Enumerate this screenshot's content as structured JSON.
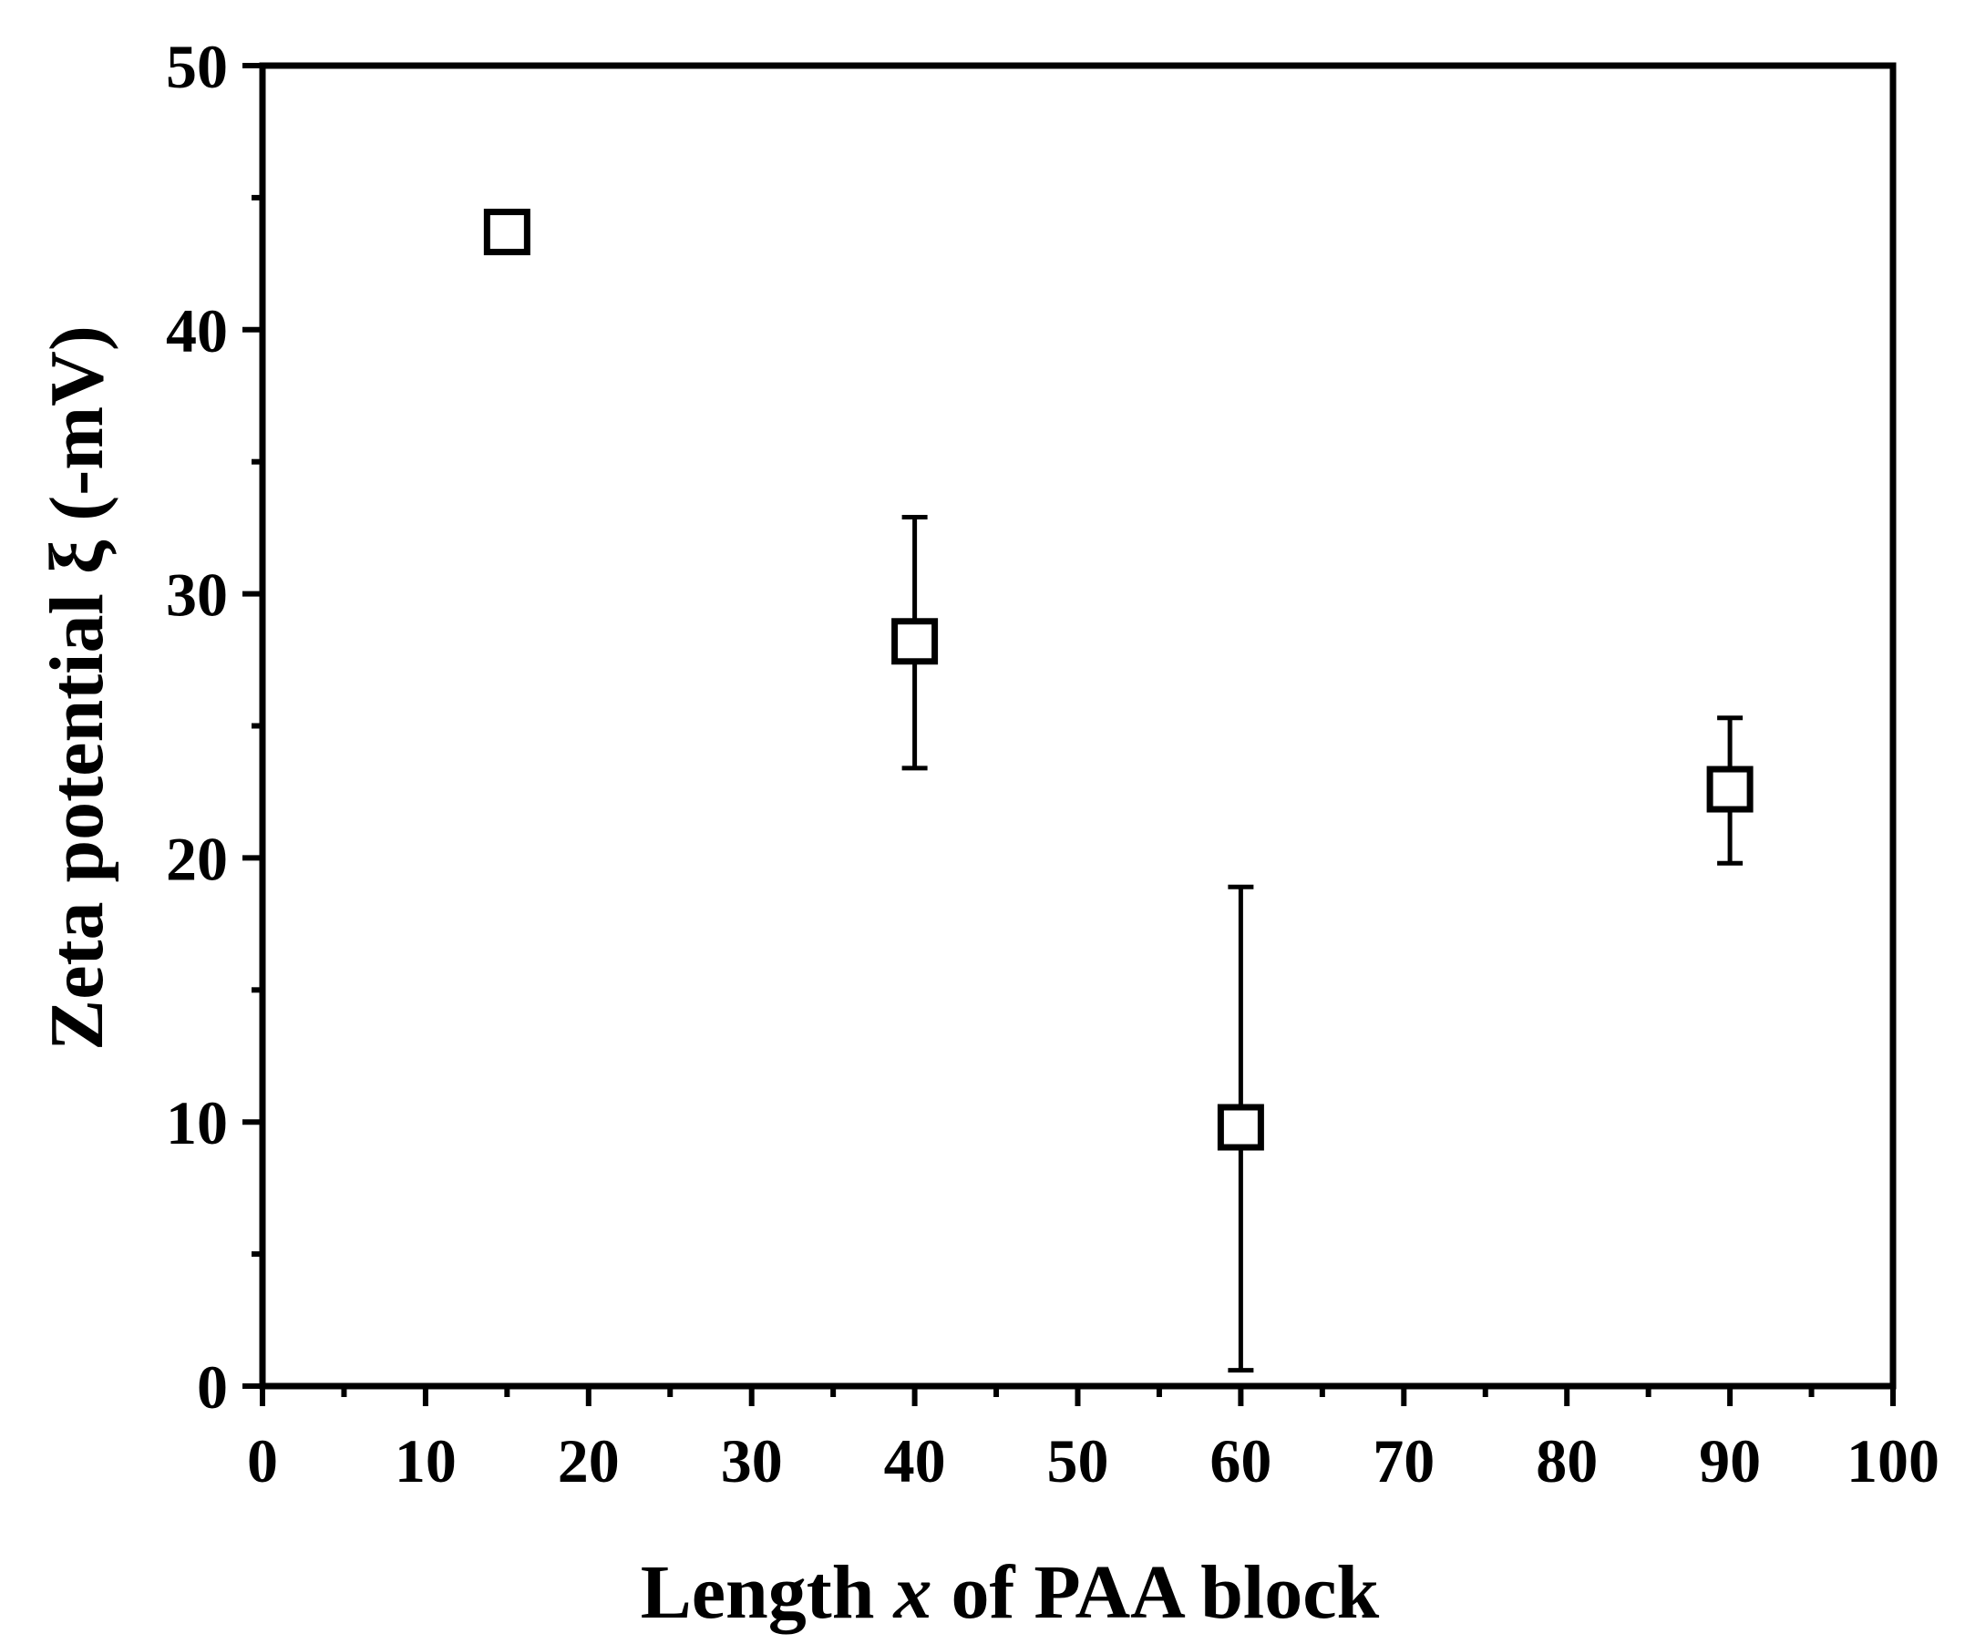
{
  "chart_data": {
    "type": "scatter",
    "xlabel_parts": [
      "Length ",
      "x",
      " of PAA block"
    ],
    "ylabel": "Zeta potential ξ (-mV)",
    "xlim": [
      0,
      100
    ],
    "ylim": [
      0,
      50
    ],
    "x_major_ticks": [
      0,
      10,
      20,
      30,
      40,
      50,
      60,
      70,
      80,
      90,
      100
    ],
    "x_tick_labels": [
      "0",
      "10",
      "20",
      "30",
      "40",
      "50",
      "60",
      "70",
      "80",
      "90",
      "100"
    ],
    "y_major_ticks": [
      0,
      10,
      20,
      30,
      40,
      50
    ],
    "y_tick_labels": [
      "0",
      "10",
      "20",
      "30",
      "40",
      "50"
    ],
    "marker": "open-square",
    "grid": false,
    "points": [
      {
        "x": 15,
        "y": 43.7,
        "y_err_low": 43.1,
        "y_err_high": 44.3
      },
      {
        "x": 40,
        "y": 28.2,
        "y_err_low": 23.4,
        "y_err_high": 32.9
      },
      {
        "x": 60,
        "y": 9.8,
        "y_err_low": 0.6,
        "y_err_high": 18.9
      },
      {
        "x": 90,
        "y": 22.6,
        "y_err_low": 19.8,
        "y_err_high": 25.3
      }
    ]
  }
}
